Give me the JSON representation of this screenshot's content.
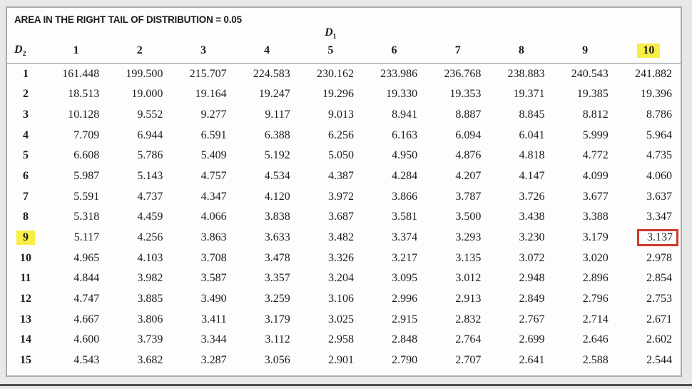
{
  "title": "AREA IN THE RIGHT TAIL OF DISTRIBUTION = 0.05",
  "table": {
    "col_axis": {
      "base": "D",
      "sub": "1"
    },
    "row_axis": {
      "base": "D",
      "sub": "2"
    },
    "columns": [
      "1",
      "2",
      "3",
      "4",
      "5",
      "6",
      "7",
      "8",
      "9",
      "10"
    ],
    "rows": [
      {
        "label": "1",
        "values": [
          "161.448",
          "199.500",
          "215.707",
          "224.583",
          "230.162",
          "233.986",
          "236.768",
          "238.883",
          "240.543",
          "241.882"
        ]
      },
      {
        "label": "2",
        "values": [
          "18.513",
          "19.000",
          "19.164",
          "19.247",
          "19.296",
          "19.330",
          "19.353",
          "19.371",
          "19.385",
          "19.396"
        ]
      },
      {
        "label": "3",
        "values": [
          "10.128",
          "9.552",
          "9.277",
          "9.117",
          "9.013",
          "8.941",
          "8.887",
          "8.845",
          "8.812",
          "8.786"
        ]
      },
      {
        "label": "4",
        "values": [
          "7.709",
          "6.944",
          "6.591",
          "6.388",
          "6.256",
          "6.163",
          "6.094",
          "6.041",
          "5.999",
          "5.964"
        ]
      },
      {
        "label": "5",
        "values": [
          "6.608",
          "5.786",
          "5.409",
          "5.192",
          "5.050",
          "4.950",
          "4.876",
          "4.818",
          "4.772",
          "4.735"
        ]
      },
      {
        "label": "6",
        "values": [
          "5.987",
          "5.143",
          "4.757",
          "4.534",
          "4.387",
          "4.284",
          "4.207",
          "4.147",
          "4.099",
          "4.060"
        ]
      },
      {
        "label": "7",
        "values": [
          "5.591",
          "4.737",
          "4.347",
          "4.120",
          "3.972",
          "3.866",
          "3.787",
          "3.726",
          "3.677",
          "3.637"
        ]
      },
      {
        "label": "8",
        "values": [
          "5.318",
          "4.459",
          "4.066",
          "3.838",
          "3.687",
          "3.581",
          "3.500",
          "3.438",
          "3.388",
          "3.347"
        ]
      },
      {
        "label": "9",
        "values": [
          "5.117",
          "4.256",
          "3.863",
          "3.633",
          "3.482",
          "3.374",
          "3.293",
          "3.230",
          "3.179",
          "3.137"
        ]
      },
      {
        "label": "10",
        "values": [
          "4.965",
          "4.103",
          "3.708",
          "3.478",
          "3.326",
          "3.217",
          "3.135",
          "3.072",
          "3.020",
          "2.978"
        ]
      },
      {
        "label": "11",
        "values": [
          "4.844",
          "3.982",
          "3.587",
          "3.357",
          "3.204",
          "3.095",
          "3.012",
          "2.948",
          "2.896",
          "2.854"
        ]
      },
      {
        "label": "12",
        "values": [
          "4.747",
          "3.885",
          "3.490",
          "3.259",
          "3.106",
          "2.996",
          "2.913",
          "2.849",
          "2.796",
          "2.753"
        ]
      },
      {
        "label": "13",
        "values": [
          "4.667",
          "3.806",
          "3.411",
          "3.179",
          "3.025",
          "2.915",
          "2.832",
          "2.767",
          "2.714",
          "2.671"
        ]
      },
      {
        "label": "14",
        "values": [
          "4.600",
          "3.739",
          "3.344",
          "3.112",
          "2.958",
          "2.848",
          "2.764",
          "2.699",
          "2.646",
          "2.602"
        ]
      },
      {
        "label": "15",
        "values": [
          "4.543",
          "3.682",
          "3.287",
          "3.056",
          "2.901",
          "2.790",
          "2.707",
          "2.641",
          "2.588",
          "2.544"
        ]
      }
    ]
  },
  "highlights": {
    "column": "10",
    "row": "9",
    "boxed_cell": {
      "row": "9",
      "column": "10",
      "value": "3.137"
    }
  },
  "colors": {
    "highlight_yellow": "#f8ee44",
    "box_red": "#cd3a2e",
    "frame_gray": "#ababab",
    "text": "#1c1c1c",
    "background": "#e8e8e8"
  }
}
